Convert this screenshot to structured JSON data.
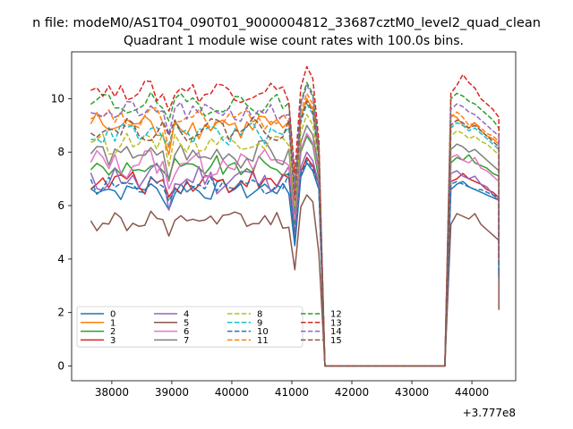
{
  "chart_data": {
    "type": "line",
    "suptitle": "n file: modeM0/AS1T04_090T01_9000004812_33687cztM0_level2_quad_clean",
    "title": "Quadrant 1 module wise count rates with 100.0s bins.",
    "xlabel": "",
    "ylabel": "",
    "x_offset_label": "+3.777e8",
    "xlim": [
      37330,
      44730
    ],
    "ylim": [
      -0.55,
      11.75
    ],
    "x_ticks": [
      38000,
      39000,
      40000,
      41000,
      42000,
      43000,
      44000
    ],
    "x_tick_labels": [
      "38000",
      "39000",
      "40000",
      "41000",
      "42000",
      "43000",
      "44000"
    ],
    "y_ticks": [
      0,
      2,
      4,
      6,
      8,
      10
    ],
    "y_tick_labels": [
      "0",
      "2",
      "4",
      "6",
      "8",
      "10"
    ],
    "grid": false,
    "legend_position": "lower-left",
    "legend_columns": 4,
    "x_start": 37650,
    "bin_width": 100,
    "n_pre": 34,
    "pre_end": 40950,
    "x_zero_start": 41550,
    "x_zero_end": 43550,
    "x_post_start": 43650,
    "x_post_end": 44450,
    "series": [
      {
        "name": "0",
        "color": "#1f77b4",
        "dash": "solid",
        "base": 6.6,
        "amp": 0.3,
        "dip": 4.5,
        "peak": 7.6,
        "tail": 3.3,
        "post": [
          6.6,
          6.8,
          6.9,
          6.7,
          6.6,
          6.5,
          6.4,
          6.3,
          6.2
        ]
      },
      {
        "name": "1",
        "color": "#ff7f0e",
        "dash": "solid",
        "base": 9.0,
        "amp": 0.4,
        "dip": 6.2,
        "peak": 10.0,
        "tail": 3.9,
        "post": [
          9.4,
          9.3,
          9.0,
          8.9,
          9.1,
          8.8,
          8.6,
          8.5,
          8.3
        ]
      },
      {
        "name": "2",
        "color": "#2ca02c",
        "dash": "solid",
        "base": 7.4,
        "amp": 0.35,
        "dip": 5.3,
        "peak": 8.6,
        "tail": 3.5,
        "post": [
          7.6,
          7.8,
          7.7,
          7.9,
          7.6,
          7.5,
          7.4,
          7.2,
          7.1
        ]
      },
      {
        "name": "3",
        "color": "#d62728",
        "dash": "solid",
        "base": 6.9,
        "amp": 0.35,
        "dip": 4.8,
        "peak": 7.8,
        "tail": 3.4,
        "post": [
          6.9,
          7.0,
          7.2,
          7.0,
          6.9,
          6.8,
          6.6,
          6.5,
          6.3
        ]
      },
      {
        "name": "4",
        "color": "#9467bd",
        "dash": "solid",
        "base": 7.0,
        "amp": 0.45,
        "dip": 4.9,
        "peak": 8.0,
        "tail": 3.4,
        "post": [
          7.2,
          7.3,
          7.1,
          7.0,
          7.1,
          6.8,
          6.7,
          6.4,
          6.2
        ]
      },
      {
        "name": "5",
        "color": "#8c564b",
        "dash": "solid",
        "base": 5.4,
        "amp": 0.35,
        "dip": 3.6,
        "peak": 6.4,
        "tail": 2.1,
        "post": [
          5.3,
          5.7,
          5.6,
          5.5,
          5.7,
          5.3,
          5.1,
          4.9,
          4.7
        ]
      },
      {
        "name": "6",
        "color": "#e377c2",
        "dash": "solid",
        "base": 7.6,
        "amp": 0.45,
        "dip": 5.5,
        "peak": 8.7,
        "tail": 3.6,
        "post": [
          7.8,
          7.9,
          7.7,
          7.6,
          7.8,
          7.4,
          7.3,
          7.1,
          6.9
        ]
      },
      {
        "name": "7",
        "color": "#7f7f7f",
        "dash": "solid",
        "base": 7.9,
        "amp": 0.4,
        "dip": 5.7,
        "peak": 9.0,
        "tail": 3.7,
        "post": [
          8.1,
          8.3,
          8.2,
          8.0,
          8.1,
          7.9,
          7.7,
          7.5,
          7.3
        ]
      },
      {
        "name": "8",
        "color": "#bcbd22",
        "dash": "dashed",
        "base": 8.4,
        "amp": 0.35,
        "dip": 6.0,
        "peak": 9.4,
        "tail": 3.8,
        "post": [
          8.6,
          8.8,
          8.7,
          8.5,
          8.6,
          8.4,
          8.3,
          8.1,
          7.9
        ]
      },
      {
        "name": "9",
        "color": "#17becf",
        "dash": "dashed",
        "base": 8.7,
        "amp": 0.35,
        "dip": 6.2,
        "peak": 9.8,
        "tail": 3.9,
        "post": [
          8.9,
          9.1,
          9.0,
          8.8,
          8.9,
          8.7,
          8.5,
          8.3,
          8.1
        ]
      },
      {
        "name": "10",
        "color": "#1f77b4",
        "dash": "dashed",
        "base": 6.8,
        "amp": 0.3,
        "dip": 4.7,
        "peak": 7.7,
        "tail": 3.3,
        "post": [
          6.8,
          6.9,
          6.8,
          6.7,
          6.6,
          6.6,
          6.5,
          6.4,
          6.3
        ]
      },
      {
        "name": "11",
        "color": "#ff7f0e",
        "dash": "dashed",
        "base": 9.2,
        "amp": 0.35,
        "dip": 6.3,
        "peak": 10.2,
        "tail": 4.0,
        "post": [
          9.3,
          9.5,
          9.3,
          9.0,
          9.1,
          8.9,
          8.7,
          8.6,
          8.4
        ]
      },
      {
        "name": "12",
        "color": "#2ca02c",
        "dash": "dashed",
        "base": 9.8,
        "amp": 0.35,
        "dip": 6.9,
        "peak": 10.6,
        "tail": 4.1,
        "post": [
          10.0,
          10.2,
          10.1,
          9.9,
          9.8,
          9.6,
          9.4,
          9.2,
          8.9
        ]
      },
      {
        "name": "13",
        "color": "#d62728",
        "dash": "dashed",
        "base": 10.3,
        "amp": 0.35,
        "dip": 7.2,
        "peak": 11.2,
        "tail": 4.2,
        "post": [
          10.2,
          10.5,
          10.9,
          10.6,
          10.4,
          10.0,
          9.8,
          9.6,
          9.3
        ]
      },
      {
        "name": "14",
        "color": "#9467bd",
        "dash": "dashed",
        "base": 9.5,
        "amp": 0.35,
        "dip": 6.6,
        "peak": 10.5,
        "tail": 4.0,
        "post": [
          9.6,
          9.8,
          9.7,
          9.5,
          9.4,
          9.2,
          9.0,
          8.8,
          8.6
        ]
      },
      {
        "name": "15",
        "color": "#8c564b",
        "dash": "dashed",
        "base": 8.9,
        "amp": 0.35,
        "dip": 6.2,
        "peak": 9.9,
        "tail": 3.9,
        "post": [
          9.0,
          9.2,
          9.1,
          8.9,
          9.0,
          8.8,
          8.6,
          8.4,
          8.2
        ]
      }
    ]
  }
}
